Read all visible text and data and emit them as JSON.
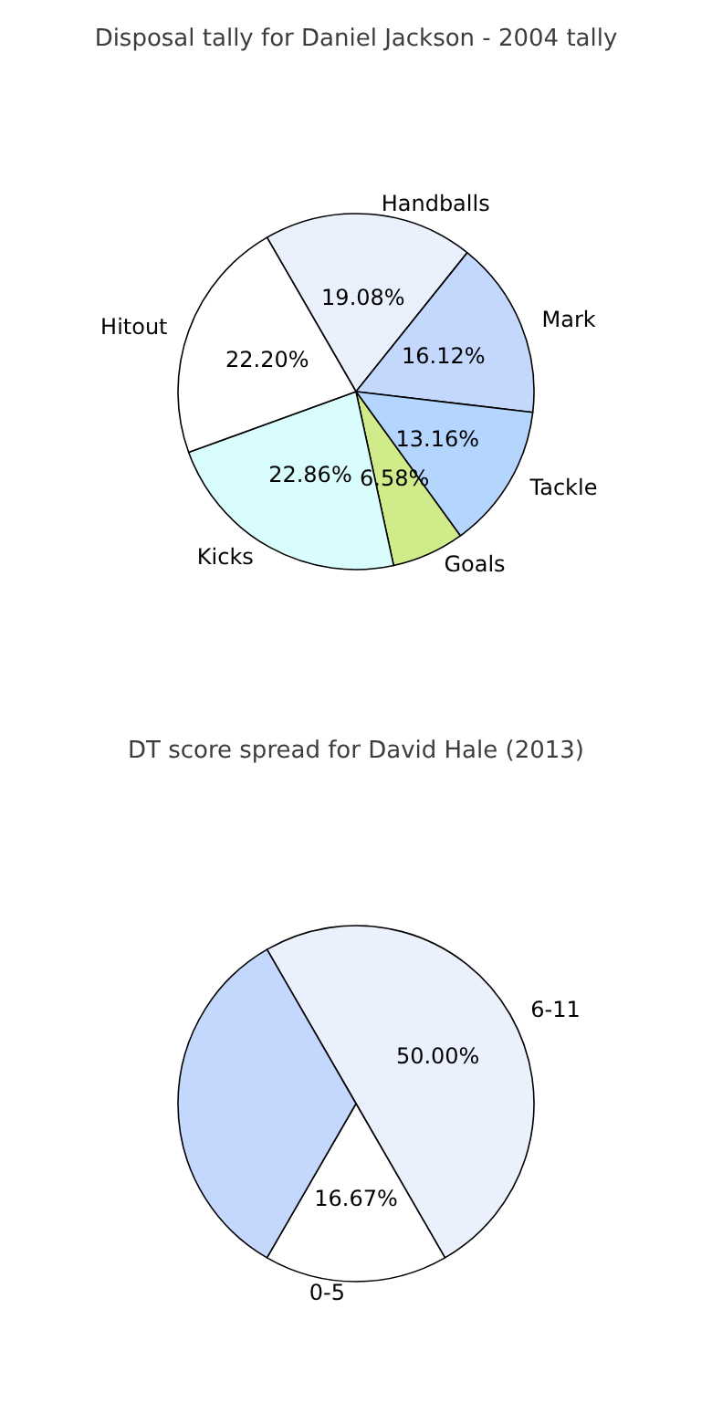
{
  "chart_data": [
    {
      "type": "pie",
      "title": "Disposal tally for Daniel Jackson - 2004 tally",
      "categories": [
        "Handballs",
        "Mark",
        "Tackle",
        "Goals",
        "Kicks",
        "Hitout"
      ],
      "values": [
        19.08,
        16.12,
        13.16,
        6.58,
        22.86,
        22.2
      ],
      "value_labels": [
        "19.08%",
        "16.12%",
        "13.16%",
        "6.58%",
        "22.86%",
        "22.20%"
      ],
      "colors": [
        "#eaf1fd",
        "#c4d8fe",
        "#b4d5fe",
        "#d0eb8a",
        "#d9fdfd",
        "#ffffff"
      ]
    },
    {
      "type": "pie",
      "title": "DT score spread for David Hale (2013)",
      "categories": [
        "6-11",
        "0-5",
        null
      ],
      "values": [
        50.0,
        16.67,
        33.33
      ],
      "value_labels": [
        "50.00%",
        "16.67%",
        null
      ],
      "colors": [
        "#eaf1fd",
        "#ffffff",
        "#c4d8fe"
      ]
    }
  ]
}
